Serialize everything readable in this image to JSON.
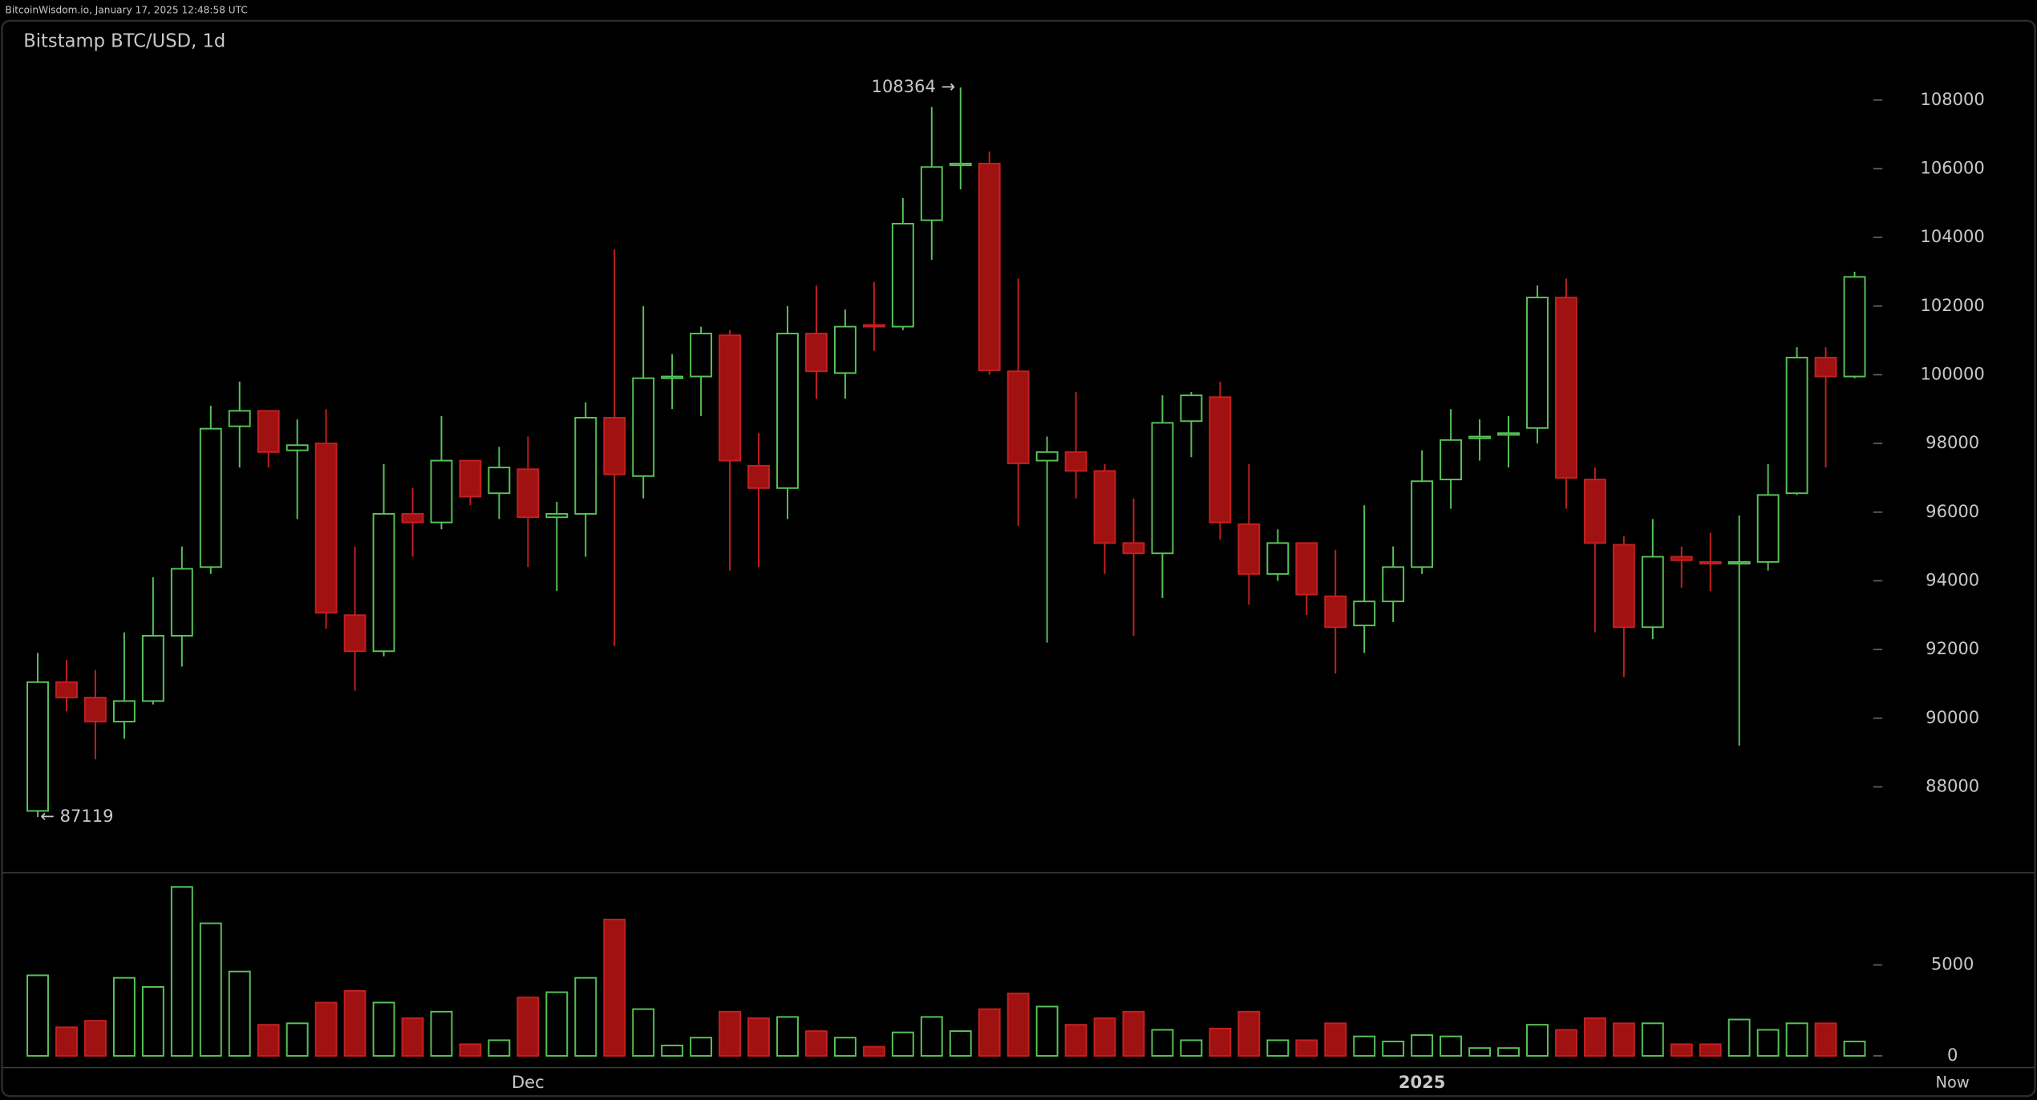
{
  "header": {
    "text": "BitcoinWisdom.io, January 17, 2025 12:48:58 UTC"
  },
  "chart_data": [
    {
      "type": "candlestick",
      "title": "Bitstamp BTC/USD, 1d",
      "categories": [
        null,
        null,
        null,
        null,
        null,
        null,
        null,
        null,
        null,
        null,
        null,
        null,
        null,
        null,
        null,
        null,
        null,
        "Dec",
        null,
        null,
        null,
        null,
        null,
        null,
        null,
        null,
        null,
        null,
        null,
        null,
        null,
        null,
        null,
        null,
        null,
        null,
        null,
        null,
        null,
        null,
        null,
        null,
        null,
        null,
        null,
        null,
        null,
        null,
        "2025",
        null,
        null,
        null,
        null,
        null,
        null,
        null,
        null,
        null,
        null,
        null,
        null,
        null,
        null,
        null
      ],
      "x_end_label": "Now",
      "open": [
        87300,
        91050,
        90600,
        89900,
        90500,
        92400,
        94400,
        98500,
        98950,
        97800,
        98000,
        93000,
        91950,
        95950,
        95700,
        97500,
        96550,
        97250,
        95850,
        95950,
        98750,
        97050,
        99900,
        99950,
        101150,
        97350,
        96700,
        101200,
        100050,
        101450,
        101400,
        104500,
        106100,
        106150,
        100100,
        97500,
        97750,
        97200,
        95100,
        94800,
        98650,
        99350,
        95650,
        94200,
        95100,
        93550,
        92700,
        93400,
        94400,
        96950,
        98150,
        98250,
        98450,
        102250,
        96950,
        95050,
        92650,
        94700,
        94550,
        94500,
        94550,
        96550,
        100500,
        99950
      ],
      "high": [
        91900,
        91700,
        91400,
        92500,
        94100,
        95000,
        99100,
        99800,
        98950,
        98700,
        99000,
        95000,
        97400,
        96700,
        98800,
        97500,
        97900,
        98200,
        96300,
        99200,
        103650,
        102000,
        100600,
        101400,
        101300,
        98300,
        102000,
        102600,
        101900,
        102700,
        105150,
        107800,
        108364,
        106500,
        102800,
        98200,
        99500,
        97400,
        96400,
        99400,
        99500,
        99800,
        97400,
        95500,
        95100,
        94900,
        96200,
        95000,
        97800,
        99000,
        98700,
        98800,
        102600,
        102800,
        97300,
        95300,
        95800,
        95000,
        95400,
        95900,
        97400,
        100800,
        100800,
        103000
      ],
      "low": [
        87119,
        90200,
        88800,
        89400,
        90400,
        91500,
        94200,
        97300,
        97300,
        95800,
        92600,
        90800,
        91800,
        94700,
        95500,
        96200,
        95800,
        94400,
        93700,
        94700,
        92100,
        96400,
        99000,
        98800,
        94300,
        94400,
        95800,
        99300,
        99300,
        100700,
        101300,
        103350,
        105400,
        100000,
        95600,
        92200,
        96400,
        94200,
        92400,
        93500,
        97600,
        95200,
        93300,
        94000,
        93000,
        91300,
        91900,
        92800,
        94200,
        96100,
        97500,
        97300,
        98000,
        96100,
        92500,
        91200,
        92300,
        93800,
        93700,
        89200,
        94300,
        96500,
        97300,
        99900
      ],
      "close": [
        91050,
        90600,
        89900,
        90500,
        92400,
        94350,
        98430,
        98950,
        97750,
        97950,
        93070,
        91950,
        95950,
        95700,
        97500,
        96450,
        97300,
        95850,
        95950,
        98750,
        97100,
        99900,
        99950,
        101200,
        97500,
        96700,
        101200,
        100100,
        101400,
        101400,
        104400,
        106050,
        106150,
        100130,
        97420,
        97750,
        97200,
        95100,
        94800,
        98600,
        99400,
        95700,
        94200,
        95100,
        93600,
        92650,
        93400,
        94400,
        96900,
        98100,
        98200,
        98300,
        102250,
        97000,
        95100,
        92650,
        94700,
        94600,
        94500,
        94550,
        96500,
        100500,
        99950,
        102850
      ],
      "up_color": "#58c458",
      "down_color": "#a01212",
      "ylim": [
        85500,
        109400
      ],
      "yticks": [
        88000,
        90000,
        92000,
        94000,
        96000,
        98000,
        100000,
        102000,
        104000,
        106000,
        108000
      ],
      "annotations": [
        {
          "value": 108364,
          "label": "108364 →"
        },
        {
          "value": 87119,
          "label": "← 87119"
        }
      ]
    },
    {
      "type": "volume",
      "values": [
        4430,
        1570,
        1930,
        4290,
        3790,
        9290,
        7290,
        4640,
        1710,
        1790,
        2930,
        3570,
        2930,
        2070,
        2430,
        640,
        860,
        3210,
        3500,
        4290,
        7500,
        2570,
        570,
        1000,
        2430,
        2070,
        2140,
        1360,
        1000,
        500,
        1290,
        2140,
        1360,
        2570,
        3430,
        2710,
        1710,
        2070,
        2430,
        1430,
        860,
        1500,
        2430,
        860,
        860,
        1790,
        1070,
        790,
        1140,
        1070,
        430,
        430,
        1710,
        1430,
        2070,
        1790,
        1790,
        640,
        640,
        2000,
        1430,
        1790,
        1790,
        790
      ],
      "ylim": [
        0,
        10000
      ],
      "yticks": [
        0,
        5000
      ]
    }
  ]
}
